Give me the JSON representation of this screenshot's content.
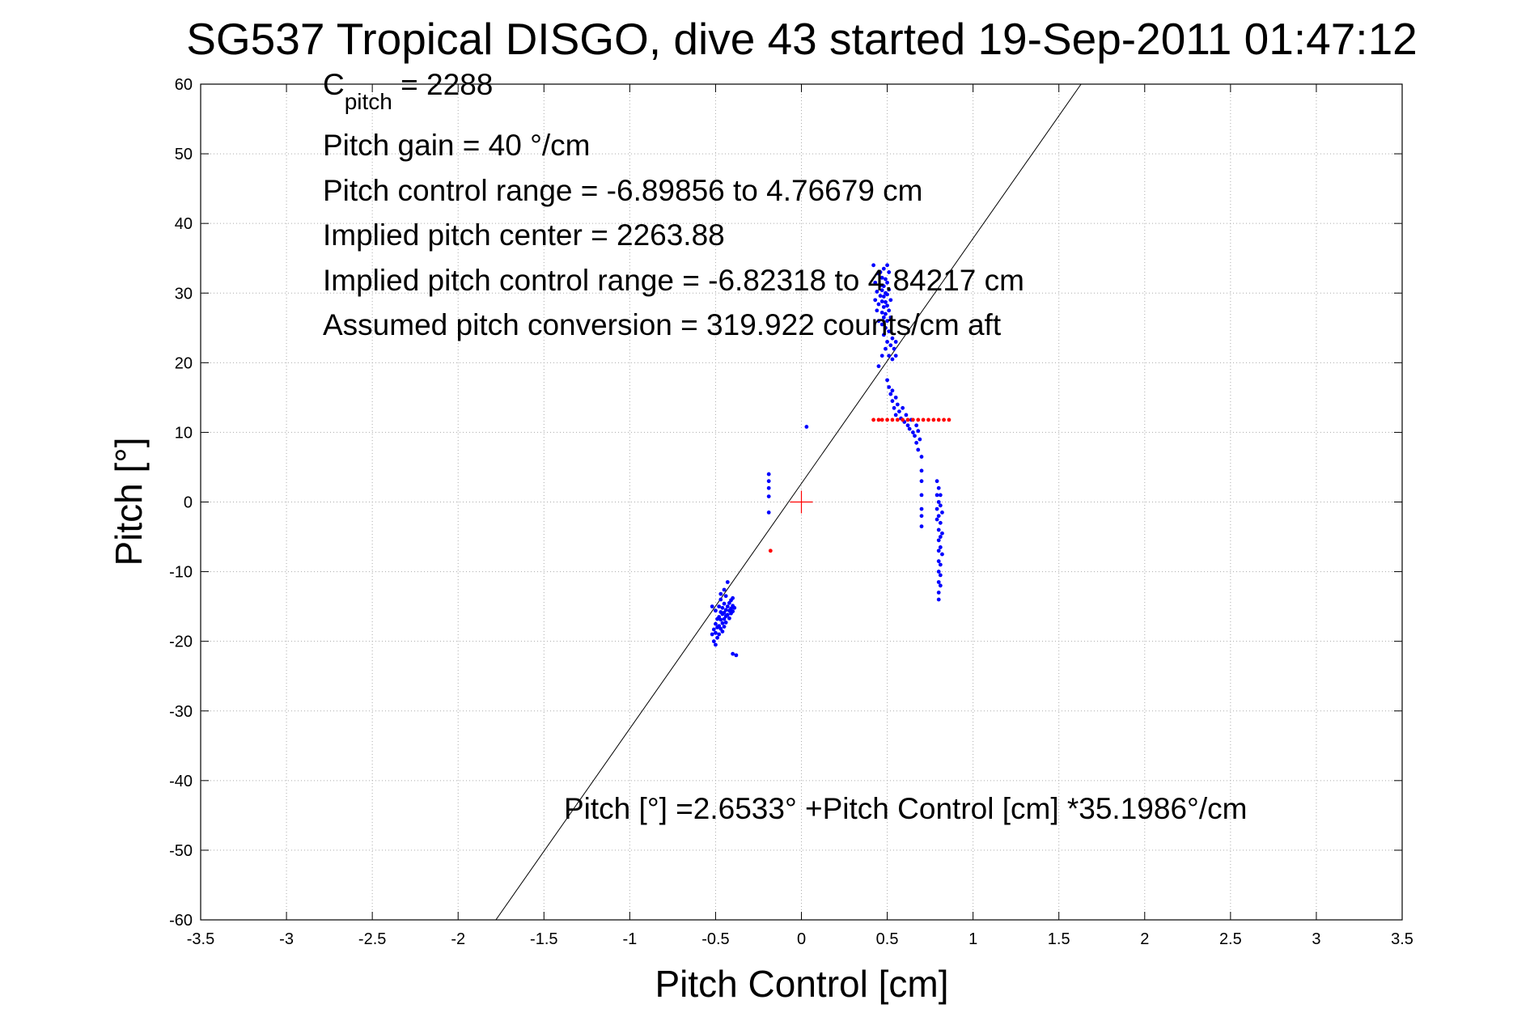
{
  "chart_data": {
    "type": "scatter",
    "title": "SG537 Tropical DISGO, dive 43 started 19-Sep-2011 01:47:12",
    "xlabel": "Pitch Control [cm]",
    "ylabel": "Pitch [°]",
    "xlim": [
      -3.5,
      3.5
    ],
    "ylim": [
      -60,
      60
    ],
    "grid": true,
    "xticks": [
      "-3.5",
      "-3",
      "-2.5",
      "-2",
      "-1.5",
      "-1",
      "-0.5",
      "0",
      "0.5",
      "1",
      "1.5",
      "2",
      "2.5",
      "3",
      "3.5"
    ],
    "yticks": [
      "60",
      "50",
      "40",
      "30",
      "20",
      "10",
      "0",
      "-10",
      "-20",
      "-30",
      "-40",
      "-50",
      "-60"
    ],
    "annotations": {
      "c_pitch_main": "C",
      "c_pitch_sub": "pitch",
      "c_pitch_value": " = 2288",
      "pitch_gain": "Pitch gain = 40 °/cm",
      "pitch_control_range": "Pitch control range = -6.89856 to 4.76679 cm",
      "implied_center": "Implied pitch center = 2263.88",
      "implied_range": "Implied pitch control range = -6.82318 to 4.84217 cm",
      "assumed_conversion": "Assumed pitch conversion = 319.922 counts/cm aft",
      "fit_equation": "Pitch [°] =2.6533° +Pitch Control [cm] *35.1986°/cm"
    },
    "fit_line": {
      "intercept": 2.6533,
      "slope": 35.1986,
      "color": "#000000"
    },
    "center_marker": {
      "x": 0,
      "y": 0,
      "color": "#ff0000"
    },
    "series": [
      {
        "color": "#0000ff",
        "points": [
          [
            -0.52,
            -19.0
          ],
          [
            -0.51,
            -18.3
          ],
          [
            -0.51,
            -20.0
          ],
          [
            -0.5,
            -17.5
          ],
          [
            -0.5,
            -18.8
          ],
          [
            -0.5,
            -20.5
          ],
          [
            -0.49,
            -16.8
          ],
          [
            -0.49,
            -18.0
          ],
          [
            -0.49,
            -19.5
          ],
          [
            -0.48,
            -15.0
          ],
          [
            -0.48,
            -16.5
          ],
          [
            -0.48,
            -17.8
          ],
          [
            -0.48,
            -19.0
          ],
          [
            -0.47,
            -14.0
          ],
          [
            -0.47,
            -15.8
          ],
          [
            -0.47,
            -16.9
          ],
          [
            -0.47,
            -18.2
          ],
          [
            -0.46,
            -15.2
          ],
          [
            -0.46,
            -16.1
          ],
          [
            -0.46,
            -17.4
          ],
          [
            -0.46,
            -18.6
          ],
          [
            -0.45,
            -14.6
          ],
          [
            -0.45,
            -15.9
          ],
          [
            -0.45,
            -16.8
          ],
          [
            -0.45,
            -17.9
          ],
          [
            -0.44,
            -13.5
          ],
          [
            -0.44,
            -15.5
          ],
          [
            -0.44,
            -16.4
          ],
          [
            -0.44,
            -17.3
          ],
          [
            -0.43,
            -11.5
          ],
          [
            -0.43,
            -15.0
          ],
          [
            -0.43,
            -16.2
          ],
          [
            -0.42,
            -14.5
          ],
          [
            -0.42,
            -15.6
          ],
          [
            -0.42,
            -16.7
          ],
          [
            -0.41,
            -14.1
          ],
          [
            -0.41,
            -15.3
          ],
          [
            -0.41,
            -16.0
          ],
          [
            -0.4,
            -13.8
          ],
          [
            -0.4,
            -14.9
          ],
          [
            -0.4,
            -15.7
          ],
          [
            -0.4,
            -21.8
          ],
          [
            -0.38,
            -22.0
          ],
          [
            -0.39,
            -15.2
          ],
          [
            -0.52,
            -15.0
          ],
          [
            -0.5,
            -15.6
          ],
          [
            -0.47,
            -13.2
          ],
          [
            -0.45,
            -12.6
          ],
          [
            -0.19,
            4.0
          ],
          [
            -0.19,
            3.0
          ],
          [
            -0.19,
            2.0
          ],
          [
            -0.19,
            0.8
          ],
          [
            -0.19,
            -1.5
          ],
          [
            0.03,
            10.8
          ],
          [
            0.42,
            34.0
          ],
          [
            0.43,
            31.5
          ],
          [
            0.43,
            29.0
          ],
          [
            0.44,
            27.5
          ],
          [
            0.44,
            30.2
          ],
          [
            0.45,
            32.8
          ],
          [
            0.45,
            26.0
          ],
          [
            0.45,
            28.4
          ],
          [
            0.46,
            29.6
          ],
          [
            0.46,
            31.1
          ],
          [
            0.46,
            33.0
          ],
          [
            0.47,
            25.5
          ],
          [
            0.47,
            27.2
          ],
          [
            0.47,
            28.8
          ],
          [
            0.47,
            30.4
          ],
          [
            0.47,
            32.2
          ],
          [
            0.48,
            24.0
          ],
          [
            0.48,
            26.5
          ],
          [
            0.48,
            28.0
          ],
          [
            0.48,
            29.5
          ],
          [
            0.48,
            31.0
          ],
          [
            0.48,
            33.5
          ],
          [
            0.49,
            22.0
          ],
          [
            0.49,
            25.0
          ],
          [
            0.49,
            27.0
          ],
          [
            0.49,
            28.7
          ],
          [
            0.49,
            30.0
          ],
          [
            0.49,
            32.0
          ],
          [
            0.5,
            23.0
          ],
          [
            0.5,
            26.0
          ],
          [
            0.5,
            28.2
          ],
          [
            0.5,
            29.8
          ],
          [
            0.5,
            31.5
          ],
          [
            0.5,
            34.0
          ],
          [
            0.51,
            21.0
          ],
          [
            0.51,
            24.5
          ],
          [
            0.51,
            27.5
          ],
          [
            0.51,
            30.5
          ],
          [
            0.51,
            33.0
          ],
          [
            0.52,
            22.5
          ],
          [
            0.52,
            26.5
          ],
          [
            0.52,
            29.0
          ],
          [
            0.53,
            20.5
          ],
          [
            0.53,
            23.5
          ],
          [
            0.54,
            22.0
          ],
          [
            0.55,
            21.0
          ],
          [
            0.55,
            23.0
          ],
          [
            0.45,
            19.5
          ],
          [
            0.47,
            21.0
          ],
          [
            0.5,
            17.5
          ],
          [
            0.51,
            16.5
          ],
          [
            0.52,
            15.5
          ],
          [
            0.53,
            16.0
          ],
          [
            0.53,
            14.5
          ],
          [
            0.54,
            13.5
          ],
          [
            0.55,
            15.0
          ],
          [
            0.55,
            12.5
          ],
          [
            0.56,
            14.0
          ],
          [
            0.57,
            13.0
          ],
          [
            0.58,
            12.0
          ],
          [
            0.59,
            13.5
          ],
          [
            0.6,
            11.5
          ],
          [
            0.61,
            12.5
          ],
          [
            0.62,
            11.0
          ],
          [
            0.63,
            10.5
          ],
          [
            0.64,
            11.8
          ],
          [
            0.65,
            10.0
          ],
          [
            0.66,
            9.5
          ],
          [
            0.67,
            11.0
          ],
          [
            0.67,
            8.5
          ],
          [
            0.68,
            10.2
          ],
          [
            0.68,
            7.5
          ],
          [
            0.69,
            9.0
          ],
          [
            0.7,
            6.5
          ],
          [
            0.7,
            4.5
          ],
          [
            0.7,
            3.0
          ],
          [
            0.7,
            1.0
          ],
          [
            0.7,
            -1.0
          ],
          [
            0.7,
            -2.0
          ],
          [
            0.7,
            -3.5
          ],
          [
            0.79,
            3.0
          ],
          [
            0.79,
            1.0
          ],
          [
            0.79,
            -1.0
          ],
          [
            0.79,
            -2.5
          ],
          [
            0.8,
            2.0
          ],
          [
            0.8,
            0.0
          ],
          [
            0.8,
            -2.0
          ],
          [
            0.8,
            -4.0
          ],
          [
            0.8,
            -5.5
          ],
          [
            0.8,
            -7.0
          ],
          [
            0.8,
            -8.5
          ],
          [
            0.8,
            -10.0
          ],
          [
            0.8,
            -11.5
          ],
          [
            0.8,
            -13.0
          ],
          [
            0.8,
            -14.0
          ],
          [
            0.81,
            1.0
          ],
          [
            0.81,
            -0.5
          ],
          [
            0.81,
            -3.0
          ],
          [
            0.81,
            -5.0
          ],
          [
            0.81,
            -6.5
          ],
          [
            0.81,
            -9.0
          ],
          [
            0.81,
            -10.5
          ],
          [
            0.81,
            -12.0
          ],
          [
            0.82,
            -1.5
          ],
          [
            0.82,
            -4.5
          ],
          [
            0.82,
            -7.5
          ]
        ]
      },
      {
        "color": "#ff0000",
        "points": [
          [
            -0.18,
            -7.0
          ],
          [
            0.42,
            11.8
          ],
          [
            0.45,
            11.8
          ],
          [
            0.47,
            11.8
          ],
          [
            0.5,
            11.8
          ],
          [
            0.53,
            11.8
          ],
          [
            0.56,
            11.8
          ],
          [
            0.59,
            11.8
          ],
          [
            0.62,
            11.8
          ],
          [
            0.65,
            11.8
          ],
          [
            0.68,
            11.8
          ],
          [
            0.71,
            11.8
          ],
          [
            0.74,
            11.8
          ],
          [
            0.77,
            11.8
          ],
          [
            0.8,
            11.8
          ],
          [
            0.83,
            11.8
          ],
          [
            0.86,
            11.8
          ]
        ]
      }
    ]
  }
}
